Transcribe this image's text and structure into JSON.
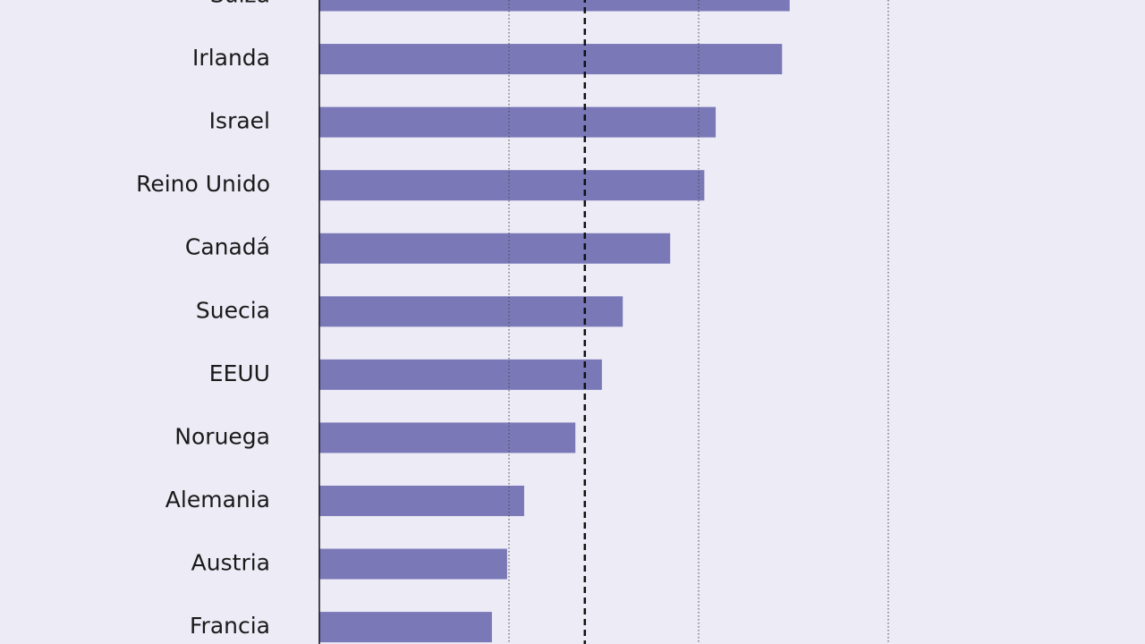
{
  "chart_data": {
    "type": "hbar",
    "categories": [
      "Suiza",
      "Irlanda",
      "Israel",
      "Reino Unido",
      "Canadá",
      "Suecia",
      "EEUU",
      "Noruega",
      "Alemania",
      "Austria",
      "Francia"
    ],
    "values": [
      2.48,
      2.44,
      2.09,
      2.03,
      1.85,
      1.6,
      1.49,
      1.35,
      1.08,
      0.99,
      0.91
    ],
    "color": "#7b78b8",
    "xlim": [
      0,
      4
    ],
    "xticks": [
      0,
      1,
      2,
      3
    ],
    "grid": true,
    "reference_line": 1.4
  }
}
